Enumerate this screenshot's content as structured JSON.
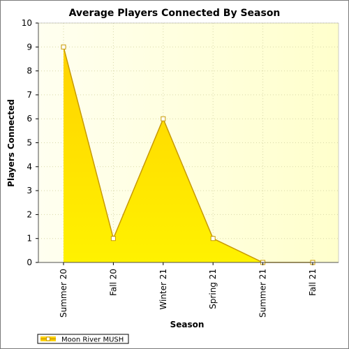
{
  "chart_data": {
    "type": "area",
    "title": "Average Players Connected By Season",
    "xlabel": "Season",
    "ylabel": "Players Connected",
    "categories": [
      "Summer 20",
      "Fall 20",
      "Winter 21",
      "Spring 21",
      "Summer 21",
      "Fall 21"
    ],
    "series": [
      {
        "name": "Moon River MUSH",
        "values": [
          9,
          1,
          6,
          1,
          0,
          0
        ]
      }
    ],
    "ylim": [
      0,
      10
    ],
    "yticks": [
      0,
      1,
      2,
      3,
      4,
      5,
      6,
      7,
      8,
      9,
      10
    ],
    "grid": true,
    "legend": "bottom-left",
    "colors": {
      "area_top": "#ffd200",
      "area_bottom": "#fff200",
      "line": "#c89a00",
      "plot_bg_left": "#fffff0",
      "plot_bg_right": "#ffffcc",
      "grid": "#d8d8a8"
    }
  }
}
